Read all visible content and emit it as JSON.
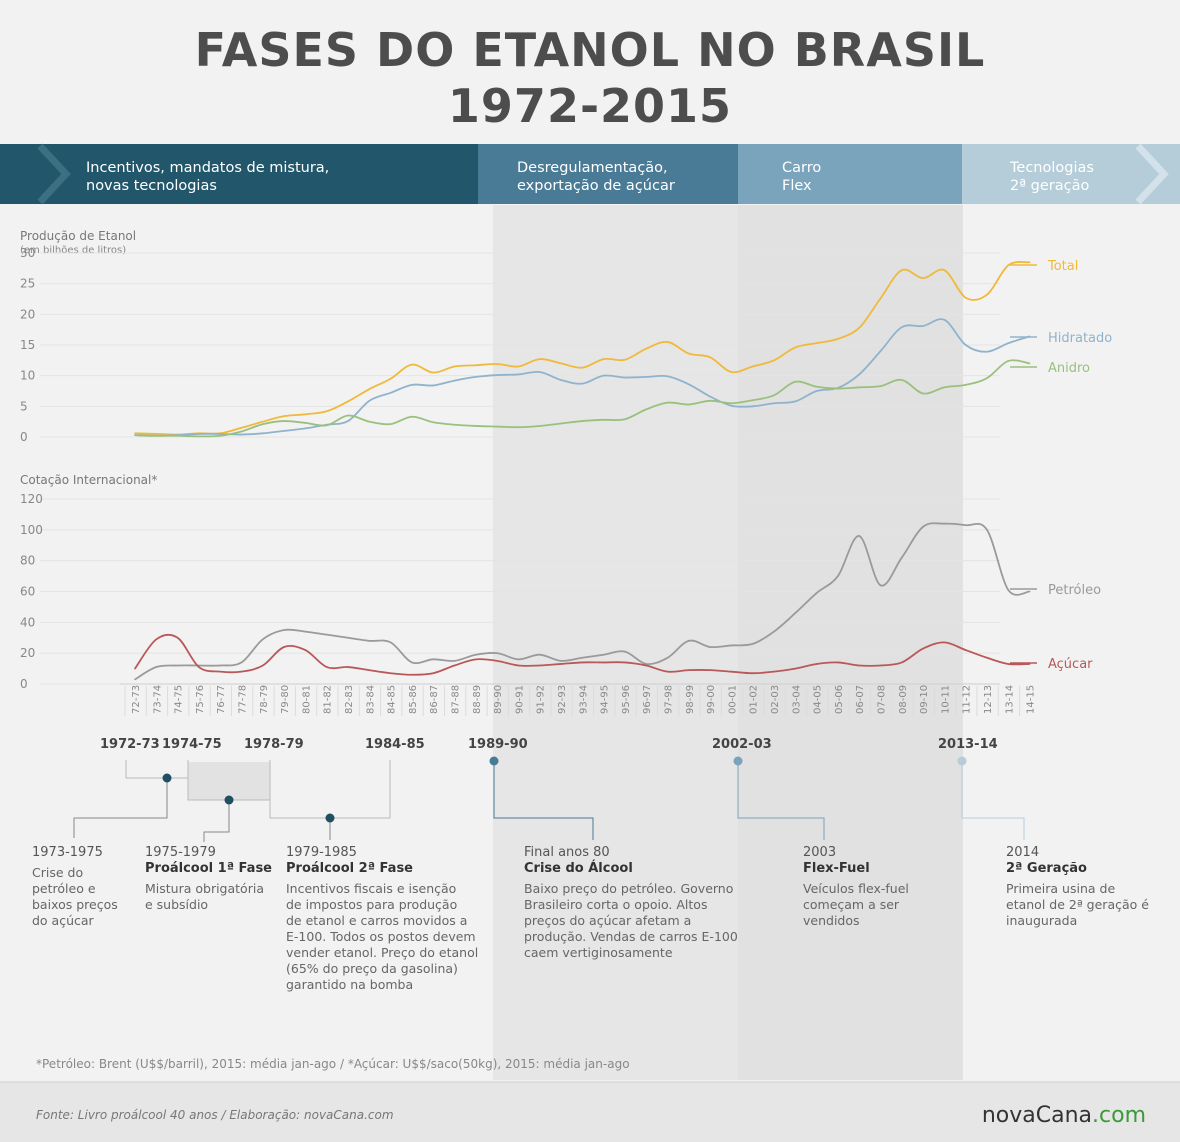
{
  "title": {
    "line1": "FASES DO ETANOL NO BRASIL",
    "line2": "1972-2015"
  },
  "phases": [
    {
      "l1": "Incentivos, mandatos de mistura,",
      "l2": "novas tecnologias",
      "color": "#22576b"
    },
    {
      "l1": "Desregulamentação,",
      "l2": "exportação de açúcar",
      "color": "#4a7b96"
    },
    {
      "l1": "Carro",
      "l2": "Flex",
      "color": "#7aa3bc"
    },
    {
      "l1": "Tecnologias",
      "l2": "2ª geração",
      "color": "#b4cdd9"
    }
  ],
  "chart_data": [
    {
      "type": "line",
      "ylabel": "Produção de Etanol",
      "ylabel_sub": "(em bilhões de litros)",
      "ylim": [
        0,
        30
      ],
      "yticks": [
        0,
        5,
        10,
        15,
        20,
        25,
        30
      ],
      "x": [
        "72-73",
        "73-74",
        "74-75",
        "75-76",
        "76-77",
        "77-78",
        "78-79",
        "79-80",
        "80-81",
        "81-82",
        "82-83",
        "83-84",
        "84-85",
        "85-86",
        "86-87",
        "87-88",
        "88-89",
        "89-90",
        "90-91",
        "91-92",
        "92-93",
        "93-94",
        "94-95",
        "95-96",
        "96-97",
        "97-98",
        "98-99",
        "99-00",
        "00-01",
        "01-02",
        "02-03",
        "03-04",
        "04-05",
        "05-06",
        "06-07",
        "07-08",
        "08-09",
        "09-10",
        "10-11",
        "11-12",
        "12-13",
        "13-14",
        "14-15"
      ],
      "series": [
        {
          "name": "Total",
          "color": "#f0b93a",
          "values": [
            0.6,
            0.5,
            0.4,
            0.6,
            0.6,
            1.5,
            2.5,
            3.4,
            3.7,
            4.2,
            5.8,
            7.8,
            9.5,
            11.8,
            10.5,
            11.5,
            11.7,
            11.9,
            11.5,
            12.7,
            12.0,
            11.3,
            12.7,
            12.6,
            14.4,
            15.5,
            13.6,
            13.0,
            10.6,
            11.5,
            12.5,
            14.6,
            15.3,
            16.0,
            17.8,
            22.6,
            27.2,
            25.9,
            27.2,
            22.7,
            23.2,
            28.0,
            28.5
          ]
        },
        {
          "name": "Hidratado",
          "color": "#8fb3cc",
          "values": [
            0.3,
            0.2,
            0.3,
            0.5,
            0.5,
            0.4,
            0.6,
            1.0,
            1.4,
            2.0,
            2.6,
            5.9,
            7.2,
            8.5,
            8.4,
            9.2,
            9.8,
            10.1,
            10.2,
            10.6,
            9.3,
            8.7,
            10.0,
            9.7,
            9.8,
            9.9,
            8.6,
            6.6,
            5.1,
            5.0,
            5.5,
            5.8,
            7.5,
            8.0,
            10.2,
            14.0,
            17.9,
            18.1,
            19.1,
            15.0,
            13.9,
            15.3,
            16.4
          ]
        },
        {
          "name": "Anidro",
          "color": "#9ac07d",
          "values": [
            0.3,
            0.2,
            0.2,
            0.1,
            0.2,
            0.9,
            2.1,
            2.6,
            2.3,
            1.9,
            3.5,
            2.5,
            2.1,
            3.3,
            2.4,
            2.0,
            1.8,
            1.7,
            1.6,
            1.8,
            2.2,
            2.6,
            2.8,
            2.9,
            4.5,
            5.6,
            5.3,
            5.9,
            5.5,
            6.0,
            6.8,
            9.0,
            8.2,
            7.9,
            8.1,
            8.3,
            9.3,
            7.1,
            8.1,
            8.5,
            9.6,
            12.4,
            12.0
          ]
        }
      ]
    },
    {
      "type": "line",
      "ylabel": "Cotação Internacional*",
      "ylim": [
        0,
        120
      ],
      "yticks": [
        0,
        20,
        40,
        60,
        80,
        100,
        120
      ],
      "x": [
        "72-73",
        "73-74",
        "74-75",
        "75-76",
        "76-77",
        "77-78",
        "78-79",
        "79-80",
        "80-81",
        "81-82",
        "82-83",
        "83-84",
        "84-85",
        "85-86",
        "86-87",
        "87-88",
        "88-89",
        "89-90",
        "90-91",
        "91-92",
        "92-93",
        "93-94",
        "94-95",
        "95-96",
        "96-97",
        "97-98",
        "98-99",
        "99-00",
        "00-01",
        "01-02",
        "02-03",
        "03-04",
        "04-05",
        "05-06",
        "06-07",
        "07-08",
        "08-09",
        "09-10",
        "10-11",
        "11-12",
        "12-13",
        "13-14",
        "14-15"
      ],
      "series": [
        {
          "name": "Petróleo",
          "color": "#9a9a9a",
          "values": [
            3,
            11,
            12,
            12,
            12,
            14,
            29,
            35,
            34,
            32,
            30,
            28,
            27,
            14,
            16,
            15,
            19,
            20,
            16,
            19,
            15,
            17,
            19,
            21,
            13,
            17,
            28,
            24,
            25,
            26,
            34,
            46,
            59,
            70,
            96,
            64,
            82,
            102,
            104,
            103,
            100,
            61,
            60
          ]
        },
        {
          "name": "Açúcar",
          "color": "#b95858",
          "values": [
            10,
            29,
            30,
            11,
            8,
            8,
            12,
            24,
            22,
            11,
            11,
            9,
            7,
            6,
            7,
            12,
            16,
            15,
            12,
            12,
            13,
            14,
            14,
            14,
            12,
            8,
            9,
            9,
            8,
            7,
            8,
            10,
            13,
            14,
            12,
            12,
            14,
            23,
            27,
            22,
            17,
            13,
            13
          ]
        }
      ]
    }
  ],
  "x_ticks": [
    "72-73",
    "73-74",
    "74-75",
    "75-76",
    "76-77",
    "77-78",
    "78-79",
    "79-80",
    "80-81",
    "81-82",
    "82-83",
    "83-84",
    "84-85",
    "85-86",
    "86-87",
    "87-88",
    "88-89",
    "89-90",
    "90-91",
    "91-92",
    "92-93",
    "93-94",
    "94-95",
    "95-96",
    "96-97",
    "97-98",
    "98-99",
    "99-00",
    "00-01",
    "01-02",
    "02-03",
    "03-04",
    "04-05",
    "05-06",
    "06-07",
    "07-08",
    "08-09",
    "09-10",
    "10-11",
    "11-12",
    "12-13",
    "13-14",
    "14-15"
  ],
  "milestones": [
    "1972-73",
    "1974-75",
    "1978-79",
    "1984-85",
    "1989-90",
    "2002-03",
    "2013-14"
  ],
  "annotations": [
    {
      "year": "1973-1975",
      "head": "",
      "desc": [
        "Crise do",
        "petróleo e",
        "baixos preços",
        "do açúcar"
      ]
    },
    {
      "year": "1975-1979",
      "head": "Proálcool 1ª Fase",
      "desc": [
        "Mistura obrigatória",
        "e subsídio"
      ]
    },
    {
      "year": "1979-1985",
      "head": "Proálcool 2ª Fase",
      "desc": [
        "Incentivos fiscais e isenção",
        "de impostos para produção",
        "de etanol e carros movidos a",
        "E-100. Todos os postos devem",
        "vender etanol. Preço do etanol",
        "(65% do preço da gasolina)",
        "garantido na bomba"
      ]
    },
    {
      "year": "Final anos 80",
      "head": "Crise do Álcool",
      "desc": [
        "Baixo preço do petróleo. Governo",
        "Brasileiro corta o opoio. Altos",
        "preços do açúcar afetam a",
        "produção. Vendas de carros E-100",
        "caem vertiginosamente"
      ]
    },
    {
      "year": "2003",
      "head": "Flex-Fuel",
      "desc": [
        "Veículos flex-fuel",
        "começam a ser",
        "vendidos"
      ]
    },
    {
      "year": "2014",
      "head": "2ª Geração",
      "desc": [
        "Primeira usina de",
        "etanol de 2ª geração é",
        "inaugurada"
      ]
    }
  ],
  "footnote": "*Petróleo: Brent (U$$/barril), 2015: média jan-ago / *Açúcar: U$$/saco(50kg), 2015: média jan-ago",
  "source": "Fonte: Livro proálcool 40 anos / Elaboração: novaCana.com",
  "brand": {
    "main": "novaCana",
    "suffix": ".com"
  }
}
